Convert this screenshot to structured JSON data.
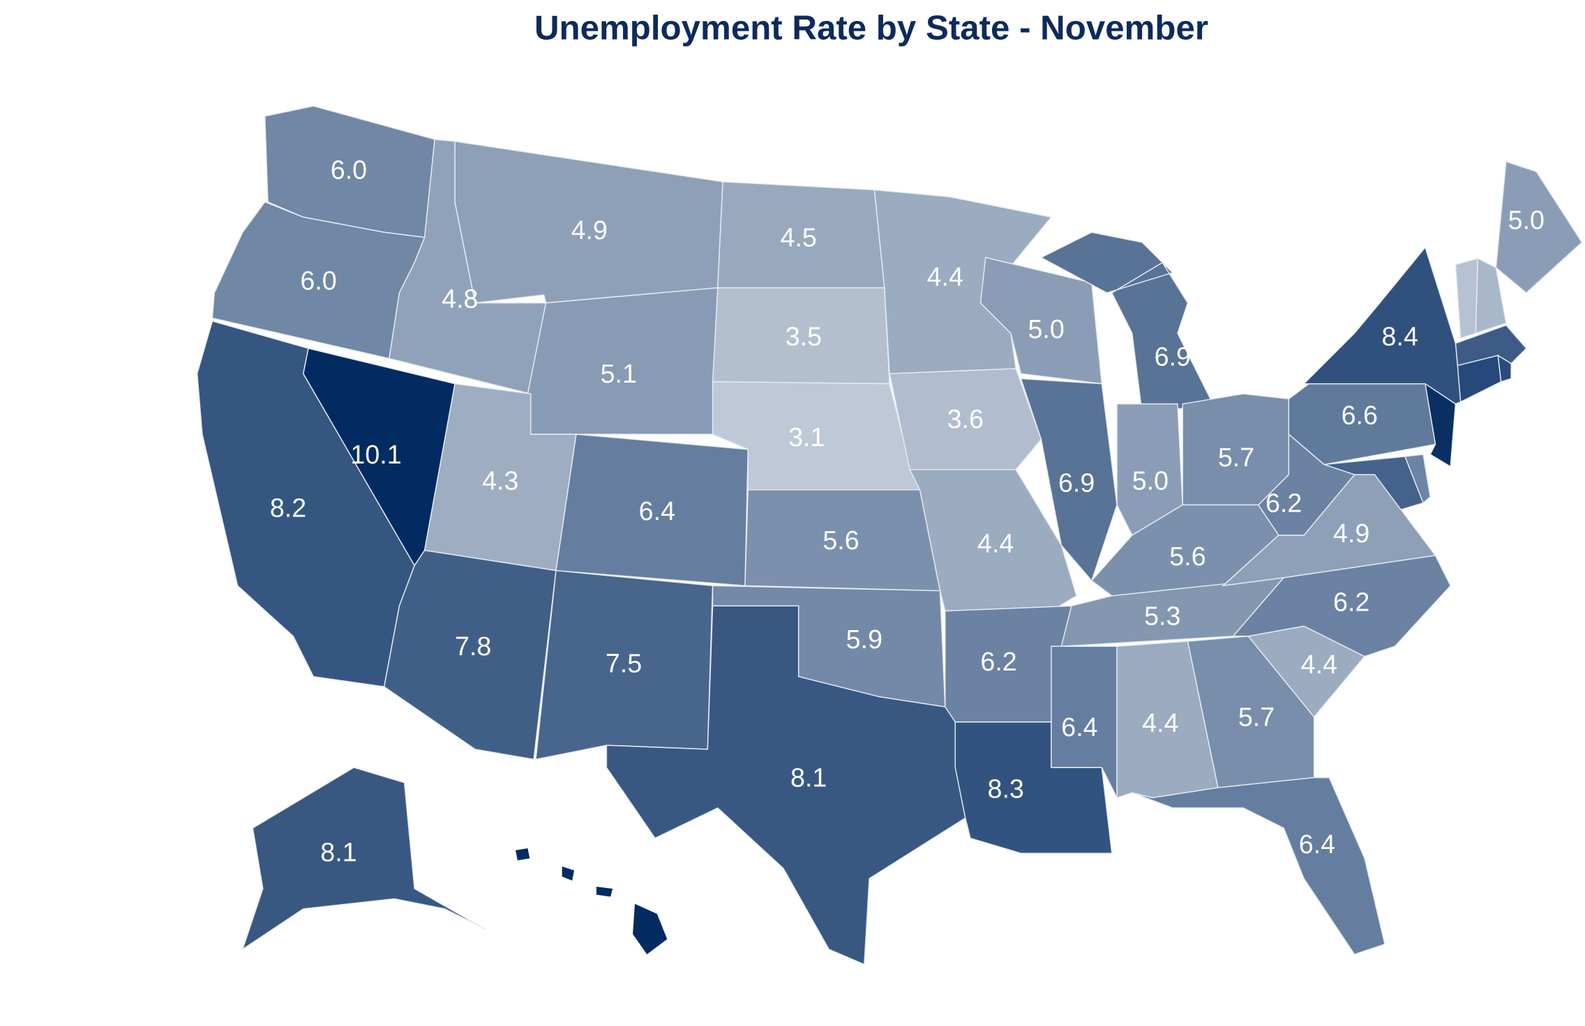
{
  "chart_data": {
    "type": "choropleth",
    "title": "Unemployment Rate by State - November",
    "values": [
      6.0,
      6.0,
      8.2,
      10.1,
      4.8,
      4.9,
      5.1,
      4.3,
      6.4,
      7.8,
      7.5,
      4.5,
      3.5,
      3.1,
      5.6,
      5.9,
      8.1,
      4.4,
      3.6,
      4.4,
      6.2,
      8.3,
      5.0,
      6.9,
      6.9,
      5.0,
      5.7,
      5.6,
      5.3,
      6.4,
      4.4,
      5.7,
      6.4,
      4.4,
      6.2,
      4.9,
      6.2,
      6.6,
      8.4,
      5.0,
      8.1
    ],
    "value_labels": [
      "6.0",
      "6.0",
      "8.2",
      "10.1",
      "4.8",
      "4.9",
      "5.1",
      "4.3",
      "6.4",
      "7.8",
      "7.5",
      "4.5",
      "3.5",
      "3.1",
      "5.6",
      "5.9",
      "8.1",
      "4.4",
      "3.6",
      "4.4",
      "6.2",
      "8.3",
      "5.0",
      "6.9",
      "6.9",
      "5.0",
      "5.7",
      "5.6",
      "5.3",
      "6.4",
      "4.4",
      "5.7",
      "6.4",
      "4.4",
      "6.2",
      "4.9",
      "6.2",
      "6.6",
      "8.4",
      "5.0",
      "8.1"
    ]
  }
}
